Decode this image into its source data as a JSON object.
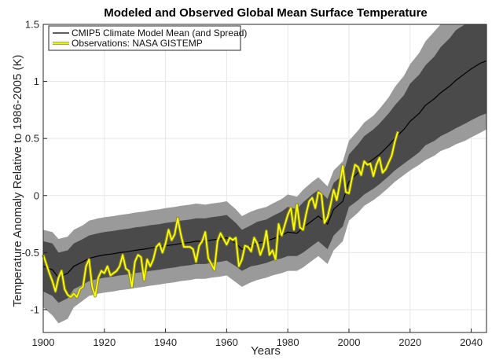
{
  "chart_data": {
    "type": "line",
    "title": "Modeled and Observed Global Mean Surface Temperature",
    "xlabel": "Years",
    "ylabel": "Temperature Anomaly Relative to 1986-2005 (K)",
    "xlim": [
      1900,
      2045
    ],
    "ylim": [
      -1.2,
      1.5
    ],
    "xticks": [
      1900,
      1920,
      1940,
      1960,
      1980,
      2000,
      2020,
      2040
    ],
    "yticks": [
      -1,
      -0.5,
      0,
      0.5,
      1,
      1.5
    ],
    "ytick_labels": [
      "-1",
      "-0.5",
      "0",
      "0.5",
      "1",
      "1.5"
    ],
    "grid": true,
    "legend_position": "top-left",
    "colors": {
      "model_mean": "#000000",
      "observations": "#ffff00",
      "observations_halo": "#8a8a24",
      "inner_spread": "#4a4a4a",
      "outer_spread": "#9a9a9a",
      "grid": "#e6e6e6",
      "axis": "#262626"
    },
    "series": [
      {
        "name": "CMIP5 Climate Model Mean (and Spread)",
        "kind": "mean_with_spread",
        "x": [
          1900,
          1903,
          1905,
          1908,
          1910,
          1913,
          1915,
          1918,
          1920,
          1923,
          1925,
          1928,
          1930,
          1933,
          1935,
          1938,
          1940,
          1943,
          1945,
          1948,
          1950,
          1953,
          1955,
          1958,
          1960,
          1963,
          1965,
          1968,
          1970,
          1973,
          1975,
          1978,
          1980,
          1983,
          1985,
          1988,
          1990,
          1993,
          1995,
          1998,
          2000,
          2003,
          2005,
          2008,
          2010,
          2013,
          2015,
          2018,
          2020,
          2023,
          2025,
          2028,
          2030,
          2033,
          2035,
          2038,
          2040,
          2043,
          2045
        ],
        "mean": [
          -0.62,
          -0.65,
          -0.72,
          -0.68,
          -0.62,
          -0.58,
          -0.55,
          -0.53,
          -0.52,
          -0.51,
          -0.5,
          -0.49,
          -0.48,
          -0.47,
          -0.46,
          -0.45,
          -0.44,
          -0.43,
          -0.42,
          -0.41,
          -0.4,
          -0.4,
          -0.39,
          -0.38,
          -0.37,
          -0.42,
          -0.47,
          -0.44,
          -0.42,
          -0.4,
          -0.38,
          -0.35,
          -0.32,
          -0.33,
          -0.28,
          -0.22,
          -0.18,
          -0.25,
          -0.12,
          -0.05,
          0.12,
          0.2,
          0.26,
          0.32,
          0.36,
          0.44,
          0.5,
          0.58,
          0.65,
          0.72,
          0.79,
          0.85,
          0.9,
          0.96,
          1.01,
          1.07,
          1.11,
          1.16,
          1.18
        ],
        "inner_upper": [
          -0.4,
          -0.42,
          -0.5,
          -0.48,
          -0.42,
          -0.38,
          -0.35,
          -0.33,
          -0.32,
          -0.31,
          -0.3,
          -0.29,
          -0.28,
          -0.27,
          -0.26,
          -0.25,
          -0.24,
          -0.23,
          -0.22,
          -0.21,
          -0.2,
          -0.2,
          -0.19,
          -0.18,
          -0.17,
          -0.24,
          -0.3,
          -0.26,
          -0.23,
          -0.21,
          -0.18,
          -0.14,
          -0.1,
          -0.12,
          -0.06,
          0.01,
          0.05,
          -0.03,
          0.11,
          0.18,
          0.36,
          0.45,
          0.52,
          0.58,
          0.63,
          0.72,
          0.79,
          0.88,
          0.98,
          1.06,
          1.14,
          1.22,
          1.3,
          1.38,
          1.45,
          1.5,
          1.5,
          1.5,
          1.5
        ],
        "inner_lower": [
          -0.84,
          -0.88,
          -0.94,
          -0.9,
          -0.82,
          -0.78,
          -0.75,
          -0.73,
          -0.72,
          -0.71,
          -0.7,
          -0.69,
          -0.68,
          -0.67,
          -0.66,
          -0.65,
          -0.64,
          -0.63,
          -0.62,
          -0.61,
          -0.6,
          -0.6,
          -0.59,
          -0.58,
          -0.57,
          -0.62,
          -0.66,
          -0.62,
          -0.61,
          -0.59,
          -0.57,
          -0.55,
          -0.53,
          -0.53,
          -0.5,
          -0.44,
          -0.4,
          -0.47,
          -0.35,
          -0.27,
          -0.1,
          -0.04,
          0.01,
          0.06,
          0.1,
          0.17,
          0.22,
          0.28,
          0.32,
          0.38,
          0.44,
          0.48,
          0.52,
          0.56,
          0.59,
          0.63,
          0.66,
          0.7,
          0.72
        ],
        "outer_upper": [
          -0.3,
          -0.32,
          -0.38,
          -0.36,
          -0.3,
          -0.26,
          -0.22,
          -0.2,
          -0.19,
          -0.18,
          -0.17,
          -0.16,
          -0.15,
          -0.14,
          -0.13,
          -0.12,
          -0.11,
          -0.1,
          -0.09,
          -0.08,
          -0.07,
          -0.08,
          -0.07,
          -0.06,
          -0.05,
          -0.12,
          -0.18,
          -0.14,
          -0.12,
          -0.1,
          -0.07,
          -0.03,
          0.01,
          -0.01,
          0.05,
          0.12,
          0.16,
          0.08,
          0.22,
          0.3,
          0.48,
          0.57,
          0.64,
          0.7,
          0.76,
          0.86,
          0.95,
          1.05,
          1.15,
          1.25,
          1.35,
          1.44,
          1.5,
          1.5,
          1.5,
          1.5,
          1.5,
          1.5,
          1.5
        ],
        "outer_lower": [
          -0.98,
          -1.05,
          -1.12,
          -1.08,
          -0.98,
          -0.92,
          -0.88,
          -0.86,
          -0.85,
          -0.84,
          -0.83,
          -0.82,
          -0.81,
          -0.8,
          -0.79,
          -0.78,
          -0.77,
          -0.76,
          -0.75,
          -0.74,
          -0.73,
          -0.73,
          -0.72,
          -0.71,
          -0.7,
          -0.76,
          -0.8,
          -0.76,
          -0.74,
          -0.72,
          -0.7,
          -0.68,
          -0.66,
          -0.66,
          -0.63,
          -0.57,
          -0.53,
          -0.6,
          -0.48,
          -0.4,
          -0.22,
          -0.15,
          -0.09,
          -0.04,
          0.0,
          0.07,
          0.12,
          0.18,
          0.22,
          0.27,
          0.31,
          0.35,
          0.39,
          0.42,
          0.45,
          0.48,
          0.51,
          0.55,
          0.58
        ]
      },
      {
        "name": "Observations: NASA GISTEMP",
        "kind": "line",
        "x": [
          1900,
          1901,
          1902,
          1903,
          1904,
          1905,
          1906,
          1907,
          1908,
          1909,
          1910,
          1911,
          1912,
          1913,
          1914,
          1915,
          1916,
          1917,
          1918,
          1919,
          1920,
          1921,
          1922,
          1923,
          1924,
          1925,
          1926,
          1927,
          1928,
          1929,
          1930,
          1931,
          1932,
          1933,
          1934,
          1935,
          1936,
          1937,
          1938,
          1939,
          1940,
          1941,
          1942,
          1943,
          1944,
          1945,
          1946,
          1947,
          1948,
          1949,
          1950,
          1951,
          1952,
          1953,
          1954,
          1955,
          1956,
          1957,
          1958,
          1959,
          1960,
          1961,
          1962,
          1963,
          1964,
          1965,
          1966,
          1967,
          1968,
          1969,
          1970,
          1971,
          1972,
          1973,
          1974,
          1975,
          1976,
          1977,
          1978,
          1979,
          1980,
          1981,
          1982,
          1983,
          1984,
          1985,
          1986,
          1987,
          1988,
          1989,
          1990,
          1991,
          1992,
          1993,
          1994,
          1995,
          1996,
          1997,
          1998,
          1999,
          2000,
          2001,
          2002,
          2003,
          2004,
          2005,
          2006,
          2007,
          2008,
          2009,
          2010,
          2011,
          2012,
          2013,
          2014,
          2015,
          2016
        ],
        "y": [
          -0.52,
          -0.6,
          -0.68,
          -0.75,
          -0.84,
          -0.72,
          -0.66,
          -0.82,
          -0.87,
          -0.89,
          -0.86,
          -0.89,
          -0.82,
          -0.8,
          -0.62,
          -0.56,
          -0.8,
          -0.88,
          -0.72,
          -0.66,
          -0.68,
          -0.62,
          -0.7,
          -0.68,
          -0.66,
          -0.62,
          -0.52,
          -0.64,
          -0.66,
          -0.8,
          -0.58,
          -0.52,
          -0.54,
          -0.74,
          -0.56,
          -0.62,
          -0.56,
          -0.45,
          -0.42,
          -0.5,
          -0.42,
          -0.3,
          -0.39,
          -0.34,
          -0.2,
          -0.34,
          -0.45,
          -0.45,
          -0.45,
          -0.47,
          -0.58,
          -0.44,
          -0.4,
          -0.32,
          -0.55,
          -0.6,
          -0.65,
          -0.4,
          -0.33,
          -0.38,
          -0.43,
          -0.37,
          -0.39,
          -0.37,
          -0.62,
          -0.56,
          -0.44,
          -0.45,
          -0.49,
          -0.37,
          -0.42,
          -0.52,
          -0.45,
          -0.31,
          -0.52,
          -0.48,
          -0.56,
          -0.25,
          -0.35,
          -0.26,
          -0.17,
          -0.11,
          -0.3,
          -0.08,
          -0.28,
          -0.3,
          -0.16,
          -0.05,
          -0.02,
          -0.11,
          0.03,
          0.01,
          -0.24,
          -0.19,
          -0.08,
          0.05,
          -0.04,
          0.1,
          0.26,
          0.03,
          0.02,
          0.15,
          0.27,
          0.25,
          0.18,
          0.3,
          0.27,
          0.28,
          0.17,
          0.27,
          0.33,
          0.2,
          0.23,
          0.29,
          0.35,
          0.47,
          0.56
        ]
      }
    ]
  }
}
